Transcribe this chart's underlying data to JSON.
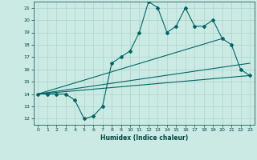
{
  "xlabel": "Humidex (Indice chaleur)",
  "background_color": "#cceae4",
  "grid_color": "#aad4cc",
  "line_color": "#006666",
  "xlim": [
    -0.5,
    23.5
  ],
  "ylim": [
    11.5,
    21.5
  ],
  "xticks": [
    0,
    1,
    2,
    3,
    4,
    5,
    6,
    7,
    8,
    9,
    10,
    11,
    12,
    13,
    14,
    15,
    16,
    17,
    18,
    19,
    20,
    21,
    22,
    23
  ],
  "yticks": [
    12,
    13,
    14,
    15,
    16,
    17,
    18,
    19,
    20,
    21
  ],
  "line1_x": [
    0,
    1,
    2,
    3,
    4,
    5,
    6,
    7,
    8,
    9,
    10,
    11,
    12,
    13,
    14,
    15,
    16,
    17,
    18,
    19,
    20,
    21,
    22,
    23
  ],
  "line1_y": [
    14.0,
    14.0,
    14.0,
    14.0,
    13.5,
    12.0,
    12.2,
    13.0,
    16.5,
    17.0,
    17.5,
    19.0,
    21.5,
    21.0,
    19.0,
    19.5,
    21.0,
    19.5,
    19.5,
    20.0,
    18.5,
    18.0,
    16.0,
    15.5
  ],
  "line2_x": [
    0,
    23
  ],
  "line2_y": [
    14.0,
    15.5
  ],
  "line3_x": [
    0,
    20
  ],
  "line3_y": [
    14.0,
    18.5
  ],
  "line4_x": [
    0,
    23
  ],
  "line4_y": [
    14.0,
    16.5
  ]
}
